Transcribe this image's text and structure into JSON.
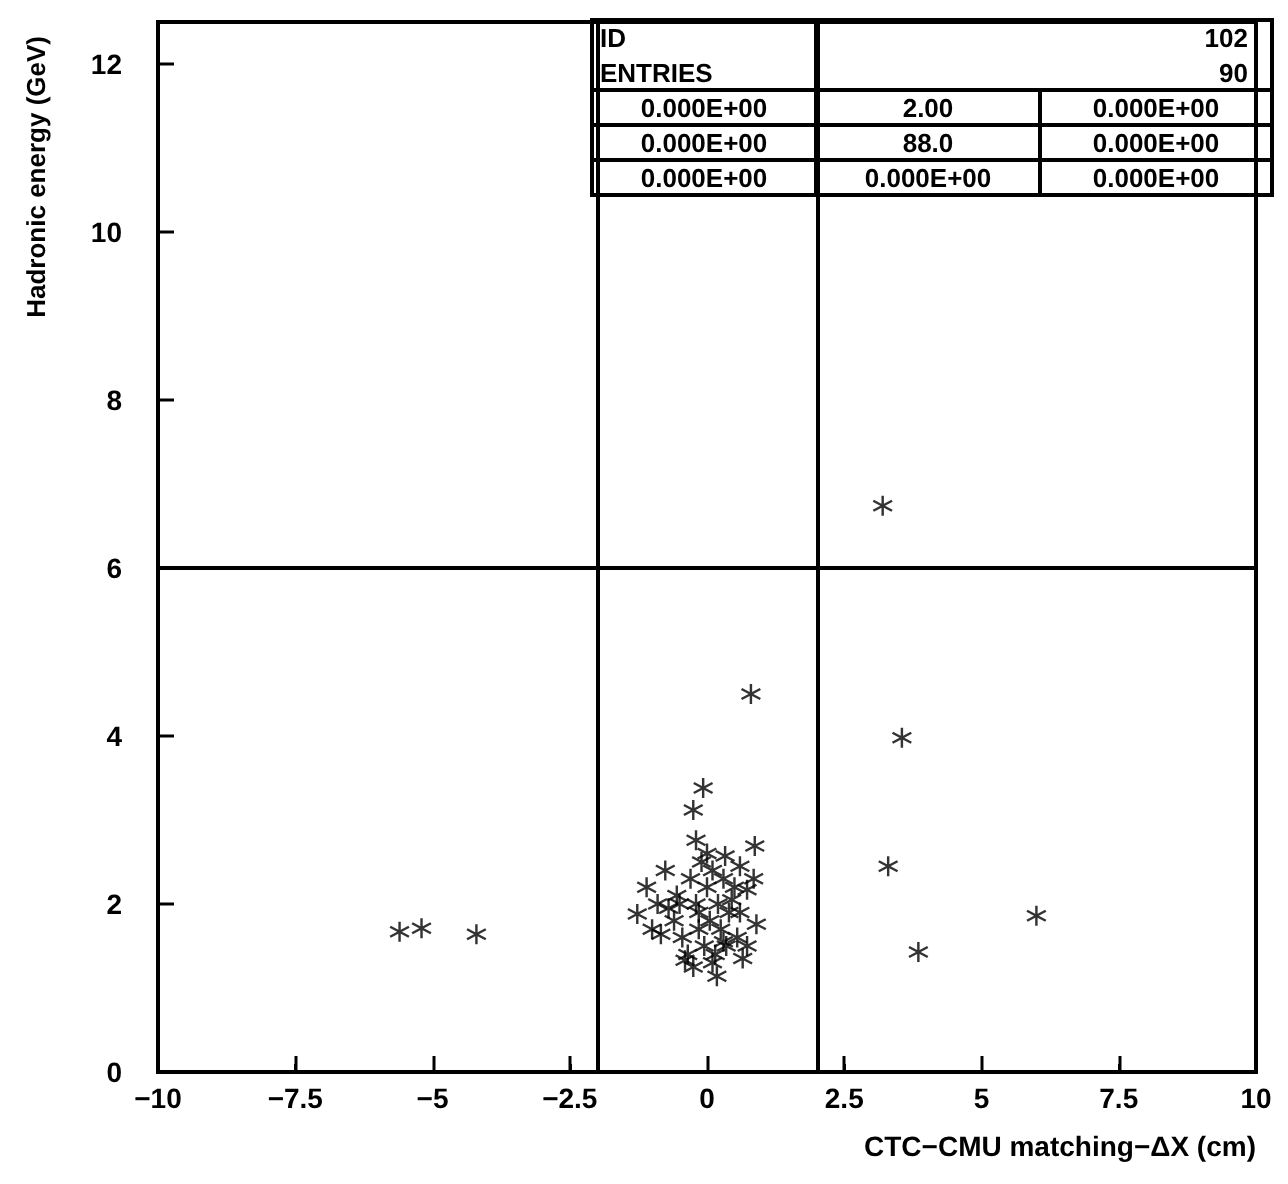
{
  "chart_data": {
    "type": "scatter",
    "xlabel": "CTC−CMU matching−ΔX (cm)",
    "ylabel": "Hadronic energy (GeV)",
    "annotations": [
      "ID",
      "102",
      "ENTRIES",
      "90",
      "0.000E+00",
      "2.00",
      "0.000E+00",
      "0.000E+00",
      "88.0",
      "0.000E+00",
      "0.000E+00",
      "0.000E+00",
      "0.000E+00"
    ],
    "xlim": [
      -10,
      10
    ],
    "xticks": [
      -10,
      -7.5,
      -5,
      -2.5,
      0,
      2.5,
      5,
      7.5,
      10
    ],
    "ylim": [
      0,
      12.5
    ],
    "yticks": [
      0,
      2,
      4,
      6,
      8,
      10,
      12
    ],
    "grid": false,
    "marker": "star",
    "ref_lines": [
      {
        "axis": "x",
        "value": -2,
        "color": "#000000"
      },
      {
        "axis": "x",
        "value": 2,
        "color": "#000000"
      },
      {
        "axis": "y",
        "value": 6,
        "color": "#000000"
      }
    ],
    "series": [
      {
        "color": "#000000",
        "x": [
          -5.6,
          -5.2,
          -4.2,
          3.2,
          3.55,
          3.3,
          3.85,
          6.0,
          0.8,
          -0.07,
          -0.25,
          -0.2,
          0.87,
          0.33,
          -0.76,
          -1.1,
          -1.27,
          0.73,
          0.9,
          -0.84,
          -0.4,
          0.18,
          0.73,
          -0.5,
          -0.3,
          -0.1,
          0.1,
          0.3,
          0.5,
          -0.6,
          -0.2,
          0.0,
          0.2,
          0.4,
          0.6,
          -0.45,
          -0.15,
          0.05,
          0.25,
          -0.35,
          -0.05,
          0.15,
          0.35,
          0.55,
          -0.7,
          -0.25,
          0.1,
          0.6,
          -0.55,
          0.0,
          0.3,
          -0.15,
          0.45,
          0.65,
          -1.0,
          -0.9,
          0.85
        ],
        "values": [
          1.67,
          1.71,
          1.64,
          6.74,
          3.98,
          2.45,
          1.43,
          1.86,
          4.5,
          3.38,
          3.12,
          2.76,
          2.69,
          2.57,
          2.4,
          2.2,
          1.88,
          2.17,
          1.76,
          1.64,
          1.33,
          1.14,
          1.5,
          2.0,
          2.3,
          2.5,
          2.4,
          2.3,
          2.2,
          1.8,
          2.0,
          2.2,
          2.0,
          1.9,
          1.9,
          1.6,
          1.7,
          1.8,
          1.7,
          1.4,
          1.5,
          1.4,
          1.5,
          1.6,
          1.95,
          1.25,
          1.3,
          2.45,
          2.1,
          2.6,
          1.55,
          1.9,
          2.05,
          1.35,
          1.7,
          2.0,
          2.3
        ]
      }
    ]
  }
}
